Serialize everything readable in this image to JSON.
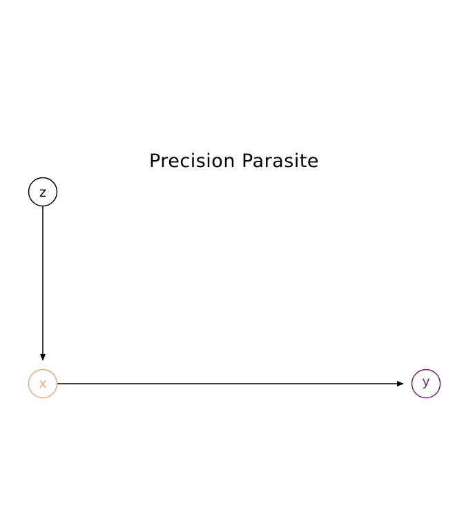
{
  "title": "Precision Parasite",
  "nodes": [
    {
      "id": "z",
      "label": "z",
      "color": "#000000"
    },
    {
      "id": "x",
      "label": "x",
      "color": "#f4a582"
    },
    {
      "id": "y",
      "label": "y",
      "color": "#7b1f6a"
    }
  ],
  "edges": [
    {
      "from": "z",
      "to": "x"
    },
    {
      "from": "x",
      "to": "y"
    }
  ],
  "colors": {
    "edge": "#000000",
    "background": "#ffffff"
  }
}
